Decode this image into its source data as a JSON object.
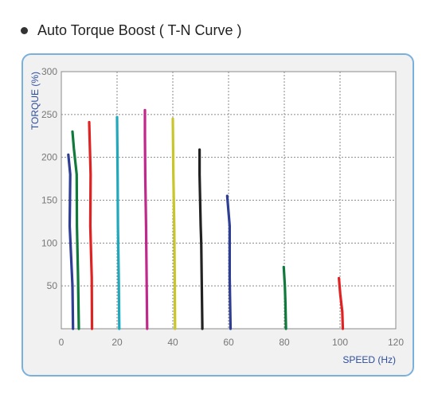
{
  "heading": {
    "bullet_icon": "bullet-icon",
    "title": "Auto Torque Boost ( T-N Curve )"
  },
  "chart_data": {
    "type": "line",
    "title": "",
    "xlabel": "SPEED (Hz)",
    "ylabel": "TORQUE (%)",
    "xlim": [
      0,
      120
    ],
    "ylim": [
      0,
      300
    ],
    "xticks": [
      0,
      20,
      40,
      60,
      80,
      100,
      120
    ],
    "yticks": [
      50,
      100,
      150,
      200,
      250,
      300
    ],
    "grid": "dotted",
    "legend": "none",
    "series": [
      {
        "color": "#2e3e94",
        "points": [
          [
            2.5,
            203
          ],
          [
            3.2,
            180
          ],
          [
            3.0,
            120
          ],
          [
            4.0,
            50
          ],
          [
            4.2,
            0
          ]
        ]
      },
      {
        "color": "#0f7a3c",
        "points": [
          [
            4.0,
            230
          ],
          [
            4.5,
            210
          ],
          [
            5.5,
            180
          ],
          [
            5.6,
            120
          ],
          [
            6.0,
            60
          ],
          [
            6.3,
            0
          ]
        ]
      },
      {
        "color": "#e02222",
        "points": [
          [
            10.0,
            241
          ],
          [
            10.5,
            180
          ],
          [
            10.4,
            120
          ],
          [
            10.9,
            60
          ],
          [
            11.0,
            0
          ]
        ]
      },
      {
        "color": "#20a9bd",
        "points": [
          [
            20.0,
            247
          ],
          [
            20.2,
            180
          ],
          [
            20.3,
            120
          ],
          [
            20.6,
            60
          ],
          [
            20.8,
            0
          ]
        ]
      },
      {
        "color": "#c0288c",
        "points": [
          [
            30.0,
            255
          ],
          [
            30.0,
            225
          ],
          [
            30.1,
            180
          ],
          [
            30.4,
            120
          ],
          [
            30.6,
            60
          ],
          [
            30.8,
            0
          ]
        ]
      },
      {
        "color": "#c8c62a",
        "points": [
          [
            40.0,
            245
          ],
          [
            40.2,
            180
          ],
          [
            40.5,
            120
          ],
          [
            40.7,
            60
          ],
          [
            40.8,
            0
          ]
        ]
      },
      {
        "color": "#222222",
        "points": [
          [
            49.6,
            209
          ],
          [
            49.6,
            180
          ],
          [
            50.0,
            120
          ],
          [
            50.2,
            100
          ],
          [
            50.4,
            50
          ],
          [
            50.6,
            0
          ]
        ]
      },
      {
        "color": "#2e3e94",
        "points": [
          [
            59.5,
            155
          ],
          [
            60.4,
            120
          ],
          [
            60.4,
            60
          ],
          [
            60.7,
            0
          ]
        ]
      },
      {
        "color": "#0f7a3c",
        "points": [
          [
            79.8,
            72
          ],
          [
            80.2,
            50
          ],
          [
            80.4,
            30
          ],
          [
            80.6,
            0
          ]
        ]
      },
      {
        "color": "#e02222",
        "points": [
          [
            99.6,
            59
          ],
          [
            100.1,
            40
          ],
          [
            100.8,
            20
          ],
          [
            101.0,
            0
          ]
        ]
      }
    ]
  }
}
